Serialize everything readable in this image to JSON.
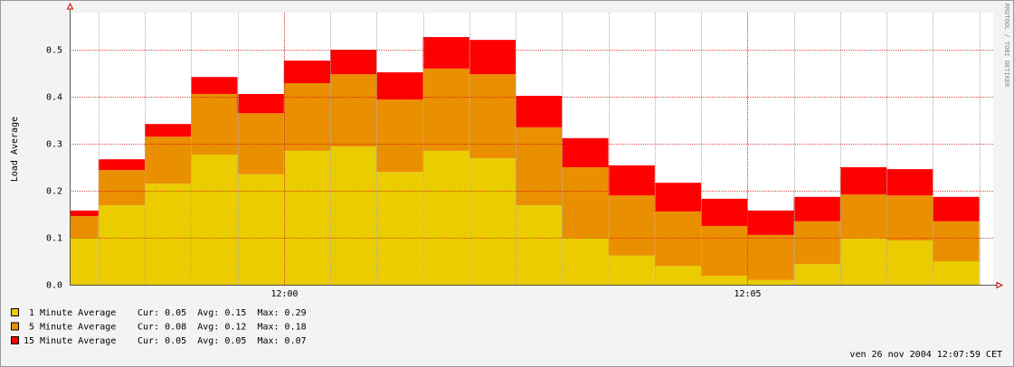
{
  "chart_data": {
    "type": "stacked_step_area",
    "ylabel": "Load Average",
    "watermark": "RRDTOOL / TOBI OETIKER",
    "timestamp": "ven 26 nov 2004 12:07:59 CET",
    "categories": [
      null,
      null,
      null,
      null,
      null,
      null,
      null,
      null,
      null,
      null,
      null,
      null,
      null,
      null,
      null,
      null,
      null,
      null,
      null,
      null
    ],
    "series": [
      {
        "name": "1 Minute Average",
        "stats": "Cur: 0.05  Avg: 0.15  Max: 0.29",
        "color": "#eacc00",
        "values": [
          0.1,
          0.169,
          0.215,
          0.277,
          0.235,
          0.285,
          0.294,
          0.24,
          0.285,
          0.269,
          0.169,
          0.1,
          0.062,
          0.04,
          0.019,
          0.01,
          0.044,
          0.1,
          0.094,
          0.05
        ]
      },
      {
        "name": "5 Minute Average",
        "stats": "Cur: 0.08  Avg: 0.12  Max: 0.18",
        "color": "#ea8f00",
        "values": [
          0.046,
          0.075,
          0.1,
          0.129,
          0.13,
          0.144,
          0.154,
          0.154,
          0.175,
          0.179,
          0.166,
          0.15,
          0.128,
          0.116,
          0.106,
          0.096,
          0.091,
          0.092,
          0.096,
          0.085
        ]
      },
      {
        "name": "15 Minute Average",
        "stats": "Cur: 0.05  Avg: 0.05  Max: 0.07",
        "color": "#ff0000",
        "values": [
          0.012,
          0.023,
          0.027,
          0.036,
          0.041,
          0.048,
          0.052,
          0.058,
          0.067,
          0.073,
          0.067,
          0.062,
          0.064,
          0.061,
          0.058,
          0.052,
          0.052,
          0.058,
          0.056,
          0.052
        ]
      }
    ],
    "xlim": [
      0.38,
      20.3
    ],
    "xticks": [
      {
        "value": 5,
        "label": "12:00"
      },
      {
        "value": 15,
        "label": "12:05"
      }
    ],
    "ylim": [
      0,
      0.579
    ],
    "yticks": [
      {
        "value": 0,
        "label": "0.0"
      },
      0.1,
      0.2,
      0.3,
      0.4,
      0.5
    ],
    "grid": true
  }
}
